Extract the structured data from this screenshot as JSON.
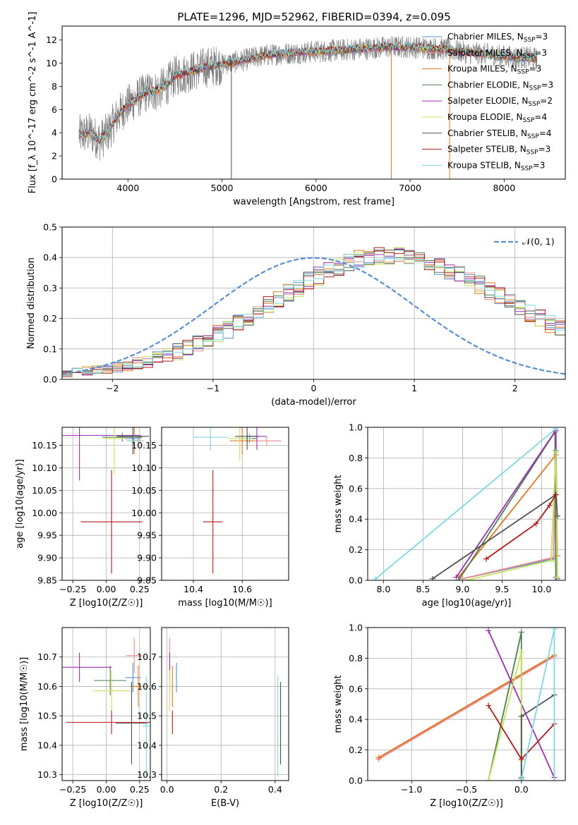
{
  "figure_title": "PLATE=1296, MJD=52962, FIBERID=0394, z=0.095",
  "colors": {
    "Chabrier MILES": "#5b8fd0",
    "Salpeter MILES": "#f08a8a",
    "Kroupa MILES": "#e3761e",
    "Chabrier ELODIE": "#4e7f52",
    "Salpeter ELODIE": "#9b2fb4",
    "Kroupa ELODIE": "#c6e25a",
    "Chabrier STELIB": "#505050",
    "Salpeter STELIB": "#b01a1a",
    "Kroupa STELIB": "#7fd8e0",
    "normal": "#5b8fd0"
  },
  "chart_data": [
    {
      "id": "spectrum",
      "type": "line",
      "xlabel": "wavelength [Angstrom, rest frame]",
      "ylabel": "Flux [f_λ 10^-17 erg cm^-2 s^-1 A^-1]",
      "xlim": [
        3300,
        8650
      ],
      "ylim": [
        0,
        13.2
      ],
      "xticks": [
        "4000",
        "5000",
        "6000",
        "7000",
        "8000"
      ],
      "yticks": [
        "0",
        "2",
        "4",
        "6",
        "8",
        "10",
        "12"
      ],
      "legend_position": "right",
      "legend": [
        {
          "imf": "Chabrier MILES",
          "nssp": "3"
        },
        {
          "imf": "Salpeter MILES",
          "nssp": "3"
        },
        {
          "imf": "Kroupa MILES",
          "nssp": "3"
        },
        {
          "imf": "Chabrier ELODIE",
          "nssp": "3"
        },
        {
          "imf": "Salpeter ELODIE",
          "nssp": "2"
        },
        {
          "imf": "Kroupa ELODIE",
          "nssp": "4"
        },
        {
          "imf": "Chabrier STELIB",
          "nssp": "4"
        },
        {
          "imf": "Salpeter STELIB",
          "nssp": "3"
        },
        {
          "imf": "Kroupa STELIB",
          "nssp": "3"
        }
      ],
      "continuum": {
        "x": [
          3480,
          3600,
          3700,
          3800,
          3900,
          4000,
          4100,
          4200,
          4300,
          4400,
          4500,
          4600,
          4800,
          5000,
          5200,
          5400,
          5600,
          5800,
          6000,
          6200,
          6400,
          6600,
          6800,
          7000,
          7200,
          7400,
          7600,
          7800,
          8000,
          8200,
          8350
        ],
        "y": [
          3.8,
          4.0,
          3.3,
          4.2,
          5.6,
          6.4,
          7.0,
          7.5,
          7.6,
          8.0,
          8.9,
          9.1,
          9.6,
          9.9,
          10.2,
          10.6,
          10.8,
          10.9,
          11.0,
          11.1,
          11.2,
          11.3,
          11.4,
          11.4,
          11.3,
          11.2,
          10.9,
          10.8,
          10.6,
          10.5,
          10.4
        ]
      },
      "data_scatter_amplitude": 1.8,
      "spikes": [
        {
          "x": 5100,
          "y_low": 0,
          "y_high": 10.3,
          "color": "Chabrier STELIB"
        },
        {
          "x": 6800,
          "y_low": 0,
          "y_high": 11.1,
          "color": "Kroupa MILES"
        },
        {
          "x": 7420,
          "y_low": 0,
          "y_high": 11.4,
          "color": "Kroupa MILES"
        }
      ]
    },
    {
      "id": "residuals",
      "type": "line",
      "xlabel": "(data-model)/error",
      "ylabel": "Normed distribution",
      "xlim": [
        -2.5,
        2.5
      ],
      "ylim": [
        0,
        0.5
      ],
      "xticks": [
        "−2",
        "−1",
        "0",
        "1",
        "2"
      ],
      "yticks": [
        "0.0",
        "0.1",
        "0.2",
        "0.3",
        "0.4",
        "0.5"
      ],
      "grid": true,
      "legend_position": "top-right",
      "normal_label": "𝒩(0, 1)",
      "hist_bins_from": -2.5,
      "hist_bin_width": 0.1,
      "hist_mean": [
        0.018,
        0.023,
        0.028,
        0.032,
        0.036,
        0.041,
        0.046,
        0.052,
        0.06,
        0.068,
        0.079,
        0.09,
        0.103,
        0.117,
        0.132,
        0.149,
        0.165,
        0.183,
        0.201,
        0.22,
        0.243,
        0.262,
        0.283,
        0.302,
        0.322,
        0.339,
        0.356,
        0.371,
        0.384,
        0.394,
        0.402,
        0.406,
        0.408,
        0.406,
        0.4,
        0.393,
        0.382,
        0.369,
        0.356,
        0.341,
        0.326,
        0.309,
        0.292,
        0.274,
        0.256,
        0.237,
        0.218,
        0.199,
        0.181,
        0.163,
        0.147,
        0.131,
        0.116,
        0.102,
        0.09,
        0.078,
        0.067,
        0.058,
        0.05,
        0.043,
        0.037,
        0.031,
        0.026,
        0.022,
        0.018
      ]
    },
    {
      "id": "age_vs_Z",
      "type": "scatter",
      "xlabel": "Z [log10(Z/Z☉)]",
      "ylabel": "age  [log10(age/yr)]",
      "xlim": [
        -0.33,
        0.33
      ],
      "ylim": [
        9.85,
        10.19
      ],
      "xticks": [
        "−0.25",
        "0.00",
        "0.25"
      ],
      "yticks": [
        "9.85",
        "9.90",
        "9.95",
        "10.00",
        "10.05",
        "10.10",
        "10.15"
      ],
      "grid": true,
      "points": [
        {
          "model": "Chabrier MILES",
          "x": 0.2,
          "y": 10.165,
          "xerr": 0.06,
          "yerr": 0.01
        },
        {
          "model": "Salpeter MILES",
          "x": 0.24,
          "y": 10.16,
          "xerr": 0.04,
          "yerr": 0.01
        },
        {
          "model": "Kroupa MILES",
          "x": 0.21,
          "y": 10.16,
          "xerr": 0.05,
          "yerr": 0.03
        },
        {
          "model": "Chabrier ELODIE",
          "x": 0.12,
          "y": 10.168,
          "xerr": 0.15,
          "yerr": 0.01
        },
        {
          "model": "Salpeter ELODIE",
          "x": -0.2,
          "y": 10.172,
          "xerr": 0.46,
          "yerr": 0.1
        },
        {
          "model": "Kroupa ELODIE",
          "x": 0.06,
          "y": 10.165,
          "xerr": 0.08,
          "yerr": 0.08
        },
        {
          "model": "Chabrier STELIB",
          "x": 0.2,
          "y": 10.17,
          "xerr": 0.12,
          "yerr": 0.04
        },
        {
          "model": "Salpeter STELIB",
          "x": 0.04,
          "y": 9.98,
          "xerr": 0.23,
          "yerr": 0.115
        },
        {
          "model": "Kroupa STELIB",
          "x": 0.21,
          "y": 10.16,
          "xerr": 0.06,
          "yerr": 0.01
        }
      ]
    },
    {
      "id": "age_vs_mass",
      "type": "scatter",
      "xlabel": "mass [log10(M/M☉)]",
      "xlim": [
        10.27,
        10.79
      ],
      "ylim": [
        9.85,
        10.19
      ],
      "xticks": [
        "10.4",
        "10.6"
      ],
      "yticks": [
        "9.85",
        "9.90",
        "9.95",
        "10.00",
        "10.05",
        "10.10",
        "10.15"
      ],
      "grid": true,
      "points": [
        {
          "model": "Chabrier MILES",
          "x": 10.63,
          "y": 10.165,
          "xerr": 0.02,
          "yerr": 0.01
        },
        {
          "model": "Salpeter MILES",
          "x": 10.7,
          "y": 10.16,
          "xerr": 0.06,
          "yerr": 0.01
        },
        {
          "model": "Kroupa MILES",
          "x": 10.6,
          "y": 10.16,
          "xerr": 0.05,
          "yerr": 0.03
        },
        {
          "model": "Chabrier ELODIE",
          "x": 10.62,
          "y": 10.165,
          "xerr": 0.04,
          "yerr": 0.01
        },
        {
          "model": "Salpeter ELODIE",
          "x": 10.66,
          "y": 10.17,
          "xerr": 0.04,
          "yerr": 0.03
        },
        {
          "model": "Kroupa ELODIE",
          "x": 10.59,
          "y": 10.165,
          "xerr": 0.05,
          "yerr": 0.05
        },
        {
          "model": "Chabrier STELIB",
          "x": 10.62,
          "y": 10.17,
          "xerr": 0.05,
          "yerr": 0.03
        },
        {
          "model": "Salpeter STELIB",
          "x": 10.48,
          "y": 9.98,
          "xerr": 0.04,
          "yerr": 0.115
        },
        {
          "model": "Kroupa STELIB",
          "x": 10.47,
          "y": 10.168,
          "xerr": 0.07,
          "yerr": 0.03
        }
      ]
    },
    {
      "id": "mass_weight_vs_age",
      "type": "line",
      "xlabel": "age  [log10(age/yr)]",
      "ylabel": "mass weight",
      "xlim": [
        7.8,
        10.3
      ],
      "ylim": [
        0,
        1.0
      ],
      "xticks": [
        "8.0",
        "8.5",
        "9.0",
        "9.5",
        "10.0"
      ],
      "yticks": [
        "0.0",
        "0.2",
        "0.4",
        "0.6",
        "0.8",
        "1.0"
      ],
      "grid": true,
      "series": [
        {
          "model": "Chabrier MILES",
          "x": [
            9.0,
            10.15,
            10.18
          ],
          "y": [
            0.01,
            0.14,
            0.85
          ]
        },
        {
          "model": "Salpeter MILES",
          "x": [
            9.0,
            10.15,
            10.18
          ],
          "y": [
            0.01,
            0.15,
            0.84
          ]
        },
        {
          "model": "Kroupa MILES",
          "x": [
            8.95,
            10.18,
            10.2
          ],
          "y": [
            0.02,
            0.82,
            0.16
          ]
        },
        {
          "model": "Chabrier ELODIE",
          "x": [
            8.95,
            10.17,
            10.18
          ],
          "y": [
            0.0,
            0.97,
            0.02
          ]
        },
        {
          "model": "Salpeter ELODIE",
          "x": [
            8.92,
            10.18,
            10.2
          ],
          "y": [
            0.02,
            0.98,
            0.01
          ]
        },
        {
          "model": "Kroupa ELODIE",
          "x": [
            9.05,
            10.12,
            10.18,
            10.2
          ],
          "y": [
            0.0,
            0.13,
            0.84,
            0.02
          ]
        },
        {
          "model": "Chabrier STELIB",
          "x": [
            8.62,
            10.18,
            10.2
          ],
          "y": [
            0.01,
            0.56,
            0.42
          ]
        },
        {
          "model": "Salpeter STELIB",
          "x": [
            9.3,
            9.93,
            10.1,
            10.18
          ],
          "y": [
            0.14,
            0.37,
            0.49,
            0.56
          ]
        },
        {
          "model": "Kroupa STELIB",
          "x": [
            7.9,
            10.18
          ],
          "y": [
            0.01,
            0.99
          ]
        }
      ]
    },
    {
      "id": "mass_vs_Z",
      "type": "scatter",
      "xlabel": "Z [log10(Z/Z☉)]",
      "ylabel": "mass [log10(M/M☉)]",
      "xlim": [
        -0.33,
        0.33
      ],
      "ylim": [
        10.28,
        10.8
      ],
      "xticks": [
        "−0.25",
        "0.00",
        "0.25"
      ],
      "yticks": [
        "10.3",
        "10.4",
        "10.5",
        "10.6",
        "10.7"
      ],
      "grid": true,
      "points": [
        {
          "model": "Chabrier MILES",
          "x": 0.2,
          "y": 10.63,
          "xerr": 0.06,
          "yerr": 0.05
        },
        {
          "model": "Salpeter MILES",
          "x": 0.21,
          "y": 10.705,
          "xerr": 0.06,
          "yerr": 0.06
        },
        {
          "model": "Kroupa MILES",
          "x": 0.24,
          "y": 10.6,
          "xerr": 0.06,
          "yerr": 0.07
        },
        {
          "model": "Chabrier ELODIE",
          "x": 0.03,
          "y": 10.62,
          "xerr": 0.12,
          "yerr": 0.05
        },
        {
          "model": "Salpeter ELODIE",
          "x": -0.2,
          "y": 10.665,
          "xerr": 0.24,
          "yerr": 0.05
        },
        {
          "model": "Kroupa ELODIE",
          "x": 0.04,
          "y": 10.585,
          "xerr": 0.14,
          "yerr": 0.07
        },
        {
          "model": "Chabrier STELIB",
          "x": 0.19,
          "y": 10.475,
          "xerr": 0.12,
          "yerr": 0.14
        },
        {
          "model": "Salpeter STELIB",
          "x": 0.04,
          "y": 10.478,
          "xerr": 0.34,
          "yerr": 0.04
        },
        {
          "model": "Kroupa STELIB",
          "x": 0.3,
          "y": 10.465,
          "xerr": 0.03,
          "yerr": 0.17
        }
      ]
    },
    {
      "id": "mass_vs_ebv",
      "type": "scatter",
      "xlabel": "E(B-V)",
      "xlim": [
        -0.02,
        0.45
      ],
      "ylim": [
        10.28,
        10.8
      ],
      "xticks": [
        "0.0",
        "0.2",
        "0.4"
      ],
      "yticks": [
        "10.3",
        "10.4",
        "10.5",
        "10.6",
        "10.7"
      ],
      "grid": true,
      "points": [
        {
          "model": "Chabrier MILES",
          "x": 0.035,
          "y": 10.63,
          "xerr": 0.0,
          "yerr": 0.05
        },
        {
          "model": "Salpeter MILES",
          "x": 0.01,
          "y": 10.705,
          "xerr": 0.0,
          "yerr": 0.06
        },
        {
          "model": "Kroupa MILES",
          "x": 0.02,
          "y": 10.6,
          "xerr": 0.0,
          "yerr": 0.07
        },
        {
          "model": "Chabrier ELODIE",
          "x": 0.01,
          "y": 10.62,
          "xerr": 0.0,
          "yerr": 0.05
        },
        {
          "model": "Salpeter ELODIE",
          "x": 0.01,
          "y": 10.665,
          "xerr": 0.0,
          "yerr": 0.05
        },
        {
          "model": "Kroupa ELODIE",
          "x": 0.01,
          "y": 10.585,
          "xerr": 0.0,
          "yerr": 0.07
        },
        {
          "model": "Chabrier STELIB",
          "x": 0.42,
          "y": 10.475,
          "xerr": 0.0,
          "yerr": 0.14
        },
        {
          "model": "Salpeter STELIB",
          "x": 0.02,
          "y": 10.478,
          "xerr": 0.0,
          "yerr": 0.04
        },
        {
          "model": "Kroupa STELIB",
          "x": 0.41,
          "y": 10.465,
          "xerr": 0.0,
          "yerr": 0.17
        }
      ]
    },
    {
      "id": "mass_weight_vs_Z",
      "type": "line",
      "xlabel": "Z [log10(Z/Z☉)]",
      "ylabel": "mass weight",
      "xlim": [
        -1.4,
        0.4
      ],
      "ylim": [
        0,
        1.0
      ],
      "xticks": [
        "−1.0",
        "−0.5",
        "0.0"
      ],
      "yticks": [
        "0.0",
        "0.2",
        "0.4",
        "0.6",
        "0.8",
        "1.0"
      ],
      "grid": true,
      "series": [
        {
          "model": "Chabrier MILES",
          "x": [
            -1.3,
            0.3
          ],
          "y": [
            0.15,
            0.82
          ]
        },
        {
          "model": "Salpeter MILES",
          "x": [
            -1.3,
            0.3
          ],
          "y": [
            0.14,
            0.81
          ]
        },
        {
          "model": "Kroupa MILES",
          "x": [
            -1.3,
            0.3
          ],
          "y": [
            0.15,
            0.82
          ]
        },
        {
          "model": "Chabrier ELODIE",
          "x": [
            -0.3,
            0.0,
            0.0
          ],
          "y": [
            0.0,
            0.97,
            0.02
          ]
        },
        {
          "model": "Salpeter ELODIE",
          "x": [
            -0.3,
            0.3
          ],
          "y": [
            0.98,
            0.02
          ]
        },
        {
          "model": "Kroupa ELODIE",
          "x": [
            -0.3,
            0.0,
            0.0
          ],
          "y": [
            0.0,
            0.84,
            0.13
          ]
        },
        {
          "model": "Chabrier STELIB",
          "x": [
            0.0,
            0.0,
            0.3
          ],
          "y": [
            0.01,
            0.42,
            0.56
          ]
        },
        {
          "model": "Salpeter STELIB",
          "x": [
            -0.3,
            0.0,
            0.3
          ],
          "y": [
            0.49,
            0.14,
            0.37
          ]
        },
        {
          "model": "Kroupa STELIB",
          "x": [
            0.0,
            0.3,
            0.3
          ],
          "y": [
            0.01,
            0.99,
            0.0
          ]
        }
      ]
    }
  ]
}
